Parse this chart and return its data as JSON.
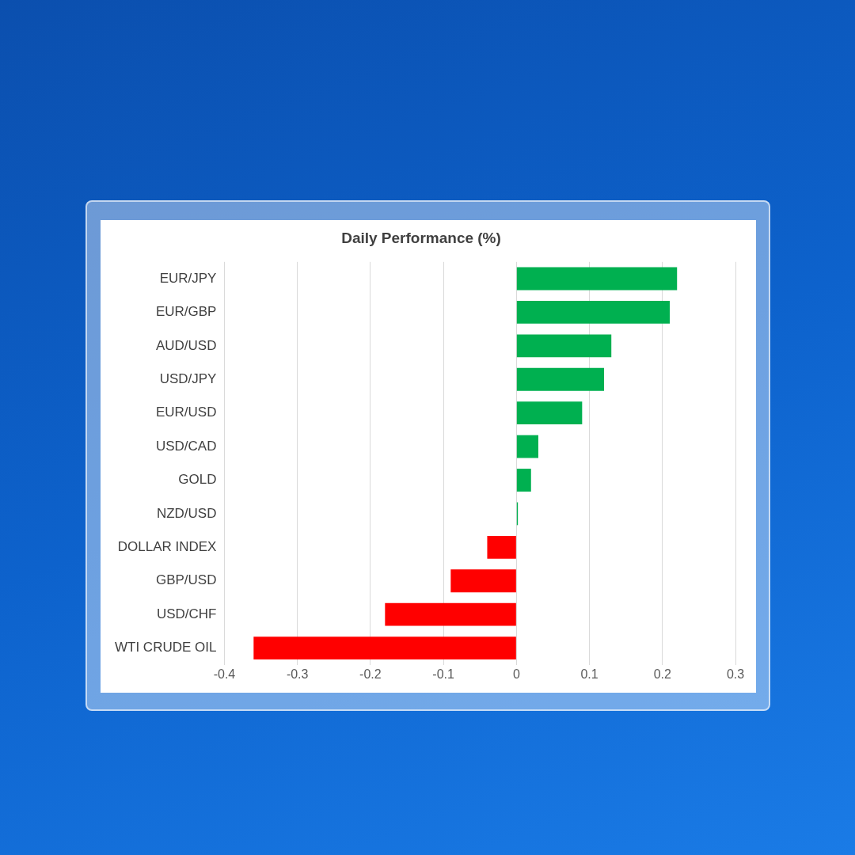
{
  "chart_data": {
    "type": "bar",
    "orientation": "horizontal",
    "title": "Daily Performance (%)",
    "categories": [
      "EUR/JPY",
      "EUR/GBP",
      "AUD/USD",
      "USD/JPY",
      "EUR/USD",
      "USD/CAD",
      "GOLD",
      "NZD/USD",
      "DOLLAR INDEX",
      "GBP/USD",
      "USD/CHF",
      "WTI CRUDE OIL"
    ],
    "values": [
      0.22,
      0.21,
      0.13,
      0.12,
      0.09,
      0.03,
      0.02,
      0.002,
      -0.04,
      -0.09,
      -0.18,
      -0.36
    ],
    "colors": [
      "#00b050",
      "#00b050",
      "#00b050",
      "#00b050",
      "#00b050",
      "#00b050",
      "#00b050",
      "#00b050",
      "#ff0000",
      "#ff0000",
      "#ff0000",
      "#ff0000"
    ],
    "xlim": [
      -0.4,
      0.3
    ],
    "xticks": [
      -0.4,
      -0.3,
      -0.2,
      -0.1,
      0,
      0.1,
      0.2,
      0.3
    ],
    "grid": "x"
  }
}
